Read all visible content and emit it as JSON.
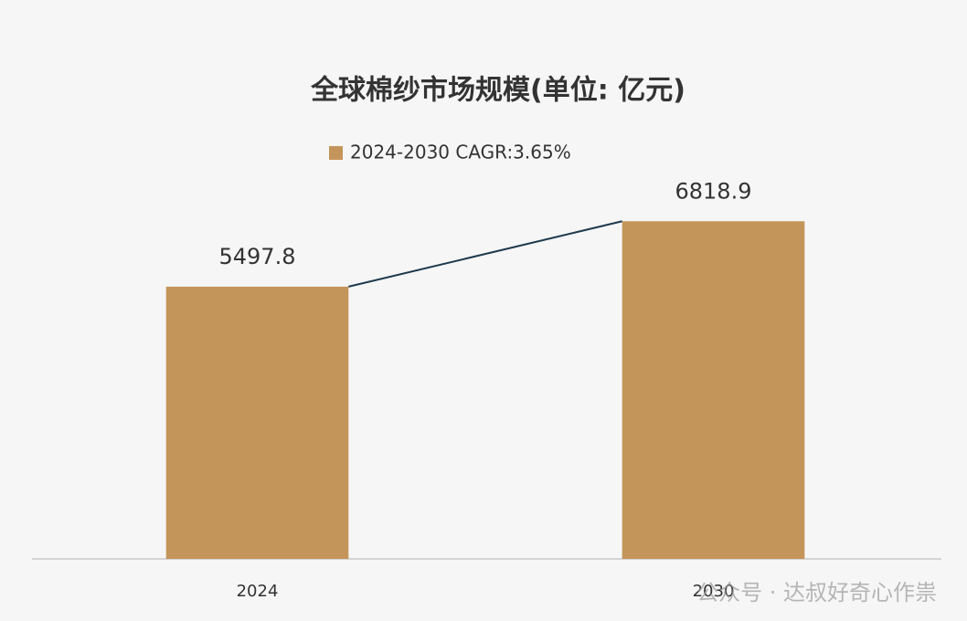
{
  "chart_data": {
    "type": "bar",
    "title": "全球棉纱市场规模(单位: 亿元)",
    "categories": [
      "2024",
      "2030"
    ],
    "series": [
      {
        "name": "2024-2030 CAGR:3.65%",
        "color": "#c4955a",
        "values": [
          5497.8,
          6818.9
        ]
      }
    ],
    "ylim": [
      0,
      9000
    ],
    "connector": true,
    "watermark": "公众号 · 达叔好奇心作祟"
  }
}
